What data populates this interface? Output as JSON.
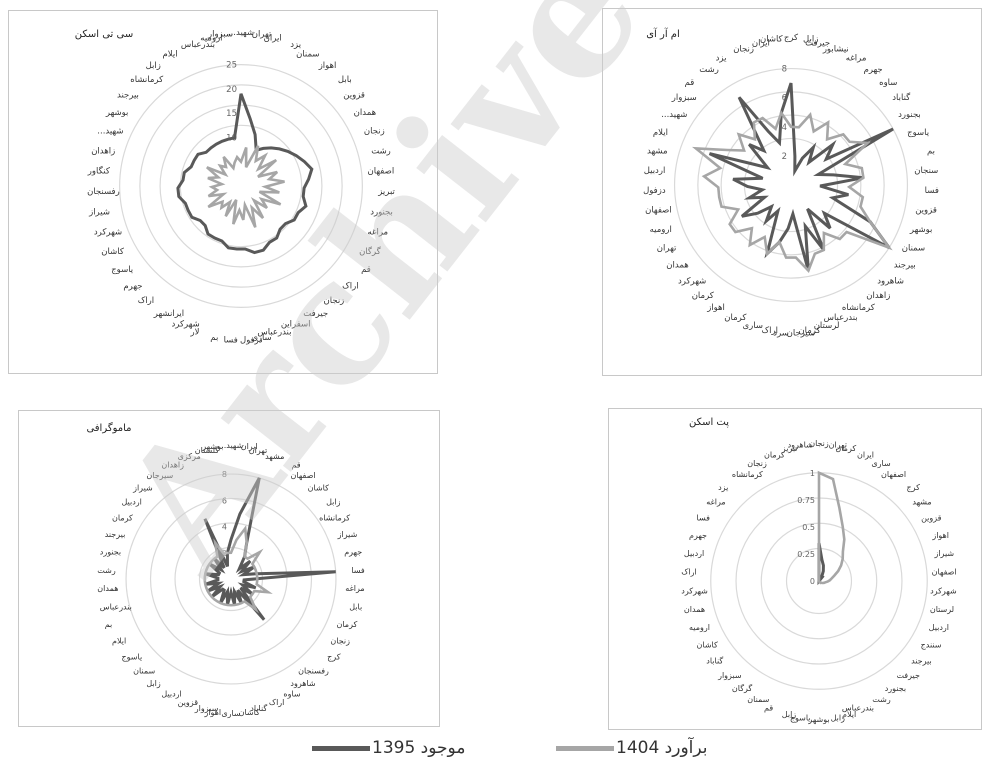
{
  "legend": {
    "series1_label": "موجود 1395",
    "series2_label": "برآورد 1404"
  },
  "colors": {
    "series1": "#595959",
    "series2": "#a6a6a6",
    "grid": "#d9d9d9"
  },
  "watermark": "Archive",
  "chart_data": [
    {
      "type": "radar",
      "title": "سی تی اسکن",
      "rmax": 25,
      "ticks": [
        10,
        15,
        20,
        25
      ],
      "categories": [
        "شهید...",
        "تهران",
        "ایران",
        "یزد",
        "سمنان",
        "اهواز",
        "بابل",
        "قزوین",
        "همدان",
        "زنجان",
        "رشت",
        "اصفهان",
        "تبریز",
        "بجنورد",
        "مراغه",
        "گرگان",
        "قم",
        "اراک",
        "زنجان",
        "جیرفت",
        "اسفراین",
        "بندرعباس",
        "ساری",
        "دزفول",
        "فسا",
        "بم",
        "لار",
        "شهرکرد",
        "ایرانشهر",
        "اراک",
        "جهرم",
        "یاسوج",
        "کاشان",
        "شهرکرد",
        "شیراز",
        "رفسنجان",
        "کنگاور",
        "زاهدان",
        "شهید...",
        "بوشهر",
        "بیرجند",
        "کرمانشاه",
        "زابل",
        "ایلام",
        "بندرعباس",
        "ارومیه",
        "سبزوار"
      ],
      "series": [
        {
          "name": "موجود 1395",
          "values": [
            19,
            14,
            11,
            8,
            9,
            10,
            11,
            12,
            13,
            14,
            15,
            14,
            13,
            13,
            14,
            13,
            13,
            12,
            12,
            13,
            13,
            14,
            14,
            13,
            13,
            13,
            12,
            12,
            12,
            11,
            11,
            12,
            12,
            12,
            13,
            13,
            12,
            12,
            11,
            11,
            11,
            10,
            10,
            10,
            10,
            10,
            10
          ]
        },
        {
          "name": "برآورد 1404",
          "values": [
            5,
            8,
            4,
            9,
            6,
            8,
            5,
            9,
            4,
            8,
            6,
            9,
            5,
            8,
            4,
            9,
            5,
            7,
            4,
            8,
            5,
            9,
            4,
            7,
            5,
            8,
            3,
            7,
            4,
            6,
            5,
            8,
            4,
            7,
            5,
            6,
            4,
            7,
            5,
            8,
            4,
            6,
            5,
            7,
            4,
            5,
            6
          ]
        }
      ]
    },
    {
      "type": "radar",
      "title": "ام آر آی",
      "rmax": 8,
      "ticks": [
        2,
        4,
        6,
        8
      ],
      "categories": [
        "کرج",
        "زابل",
        "جیرفت",
        "نیشابور",
        "مراغه",
        "جهرم",
        "ساوه",
        "گناباد",
        "بجنورد",
        "یاسوج",
        "بم",
        "سنجان",
        "فسا",
        "قزوین",
        "بوشهر",
        "سمنان",
        "بیرجند",
        "شاهرود",
        "زاهدان",
        "کرمانشاه",
        "بندرعباس",
        "لرستان",
        "کرمان",
        "سیرجان",
        "سرد",
        "اراک",
        "ساری",
        "کرمان",
        "اهواز",
        "کرمان",
        "شهرکرد",
        "همدان",
        "تهران",
        "ارومیه",
        "اصفهان",
        "دزفول",
        "اردبیل",
        "مشهد",
        "ایلام",
        "شهید...",
        "سبزوار",
        "قم",
        "رشت",
        "یزد",
        "زنجان",
        "ایران",
        "کاشان"
      ],
      "series": [
        {
          "name": "موجود 1395",
          "values": [
            7,
            2,
            1,
            2,
            3,
            2,
            4,
            3,
            8,
            2,
            3,
            5,
            2,
            4,
            3,
            6,
            8,
            3,
            4,
            2,
            5,
            3,
            6,
            2,
            3,
            4,
            5,
            2,
            3,
            2,
            3,
            4,
            2,
            3,
            2,
            3,
            4,
            2,
            6,
            3,
            2,
            4,
            3,
            7,
            4,
            3,
            5
          ]
        },
        {
          "name": "برآورد 1404",
          "values": [
            4,
            4,
            5,
            4,
            5,
            4,
            5,
            5,
            6,
            4,
            5,
            5,
            4,
            5,
            5,
            6,
            8,
            5,
            5,
            4,
            5,
            5,
            6,
            5,
            5,
            4,
            5,
            4,
            5,
            4,
            5,
            5,
            4,
            5,
            5,
            5,
            6,
            5,
            7,
            5,
            4,
            5,
            4,
            5,
            5,
            4,
            5
          ]
        }
      ]
    },
    {
      "type": "radar",
      "title": "ماموگرافی",
      "rmax": 8,
      "ticks": [
        2,
        4,
        6,
        8
      ],
      "categories": [
        "شهید...",
        "ایران",
        "تهران",
        "مشهد",
        "قم",
        "اصفهان",
        "کاشان",
        "زابل",
        "کرمانشاه",
        "شیراز",
        "جهرم",
        "فسا",
        "مراغه",
        "بابل",
        "کرمان",
        "زنجان",
        "کرج",
        "رفسنجان",
        "شاهرود",
        "ساوه",
        "اراک",
        "گناباد",
        "کاشان",
        "ساری",
        "اهواز",
        "سبزوار",
        "قزوین",
        "اردبیل",
        "زابل",
        "سمنان",
        "یاسوج",
        "ایلام",
        "بم",
        "بندرعباس",
        "همدان",
        "رشت",
        "بجنورد",
        "بیرجند",
        "کرمان",
        "اردبیل",
        "شیراز",
        "سیرجان",
        "زاهدان",
        "مرکزی",
        "گلستان",
        "بوشهر"
      ],
      "series": [
        {
          "name": "موجود 1395",
          "values": [
            3,
            5,
            8,
            3,
            2,
            1,
            2,
            1,
            2,
            1,
            2,
            8,
            1,
            1,
            2,
            1,
            2,
            1,
            4,
            1,
            2,
            1,
            2,
            1,
            2,
            1,
            2,
            1,
            1,
            2,
            1,
            2,
            1,
            2,
            1,
            1,
            2,
            1,
            1,
            2,
            1,
            2,
            1,
            5,
            1,
            2
          ]
        },
        {
          "name": "برآورد 1404",
          "values": [
            2,
            3,
            4,
            3,
            2,
            2,
            3,
            2,
            2,
            2,
            2,
            2,
            2,
            2,
            3,
            2,
            2,
            2,
            3,
            2,
            2,
            2,
            2,
            2,
            2,
            2,
            2,
            2,
            2,
            2,
            2,
            2,
            2,
            2,
            2,
            2,
            2,
            2,
            2,
            2,
            2,
            2,
            2,
            3,
            2,
            2
          ]
        }
      ]
    },
    {
      "type": "radar",
      "title": "پت اسکن",
      "rmax": 1,
      "ticks": [
        0,
        0.25,
        0.5,
        0.75,
        1
      ],
      "categories": [
        "زنجان",
        "تهران",
        "کرمان",
        "ایران",
        "ساری",
        "اصفهان",
        "کرج",
        "مشهد",
        "قزوین",
        "اهواز",
        "شیراز",
        "اصفهان",
        "شهرکرد",
        "لرستان",
        "اردبیل",
        "سنندج",
        "بیرجند",
        "جیرفت",
        "بجنورد",
        "رشت",
        "بندرعباس",
        "ایلام",
        "زابل",
        "بوشهر",
        "یاسوج",
        "زابل",
        "قم",
        "سمنان",
        "گرگان",
        "سبزوار",
        "گناباد",
        "کاشان",
        "ارومیه",
        "همدان",
        "شهرکرد",
        "اراک",
        "اردبیل",
        "جهرم",
        "فسا",
        "مراغه",
        "یزد",
        "کرمانشاه",
        "زنجان",
        "کرمان",
        "تبریز",
        "شاهرود"
      ],
      "series": [
        {
          "name": "موجود 1395",
          "values": [
            0.35,
            0.2,
            0.15,
            0.1,
            0.05,
            0.05,
            0,
            0,
            0,
            0,
            0,
            0,
            0,
            0,
            0,
            0,
            0,
            0,
            0,
            0,
            0,
            0,
            0,
            0,
            0,
            0,
            0,
            0,
            0,
            0,
            0,
            0,
            0,
            0,
            0,
            0,
            0,
            0,
            0,
            0,
            0,
            0,
            0,
            0,
            0,
            0
          ]
        },
        {
          "name": "برآورد 1404",
          "values": [
            1,
            0.95,
            0.7,
            0.55,
            0.45,
            0.35,
            0.3,
            0.25,
            0.2,
            0.15,
            0.12,
            0.1,
            0.08,
            0.06,
            0.05,
            0.04,
            0.03,
            0.02,
            0.02,
            0.01,
            0.01,
            0,
            0,
            0,
            0,
            0,
            0,
            0,
            0,
            0,
            0,
            0,
            0,
            0,
            0,
            0,
            0,
            0,
            0,
            0,
            0,
            0,
            0,
            0,
            0,
            0
          ]
        }
      ]
    }
  ]
}
